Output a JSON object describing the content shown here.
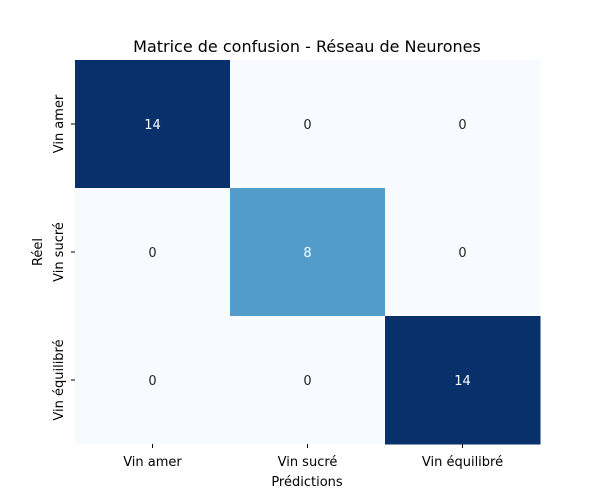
{
  "chart_data": {
    "type": "heatmap",
    "title": "Matrice de confusion - Réseau de Neurones",
    "xlabel": "Prédictions",
    "ylabel": "Réel",
    "x_categories": [
      "Vin amer",
      "Vin sucré",
      "Vin équilibré"
    ],
    "y_categories": [
      "Vin amer",
      "Vin sucré",
      "Vin équilibré"
    ],
    "matrix": [
      [
        14,
        0,
        0
      ],
      [
        0,
        8,
        0
      ],
      [
        0,
        0,
        14
      ]
    ],
    "value_range": [
      0,
      14
    ],
    "colormap": "Blues",
    "colors": {
      "low": "#f7fbff",
      "mid": "#57a0ce",
      "high": "#08306b",
      "text_dark": "#262626",
      "text_light": "#ffffff"
    },
    "colorbar": false,
    "grid": false
  }
}
